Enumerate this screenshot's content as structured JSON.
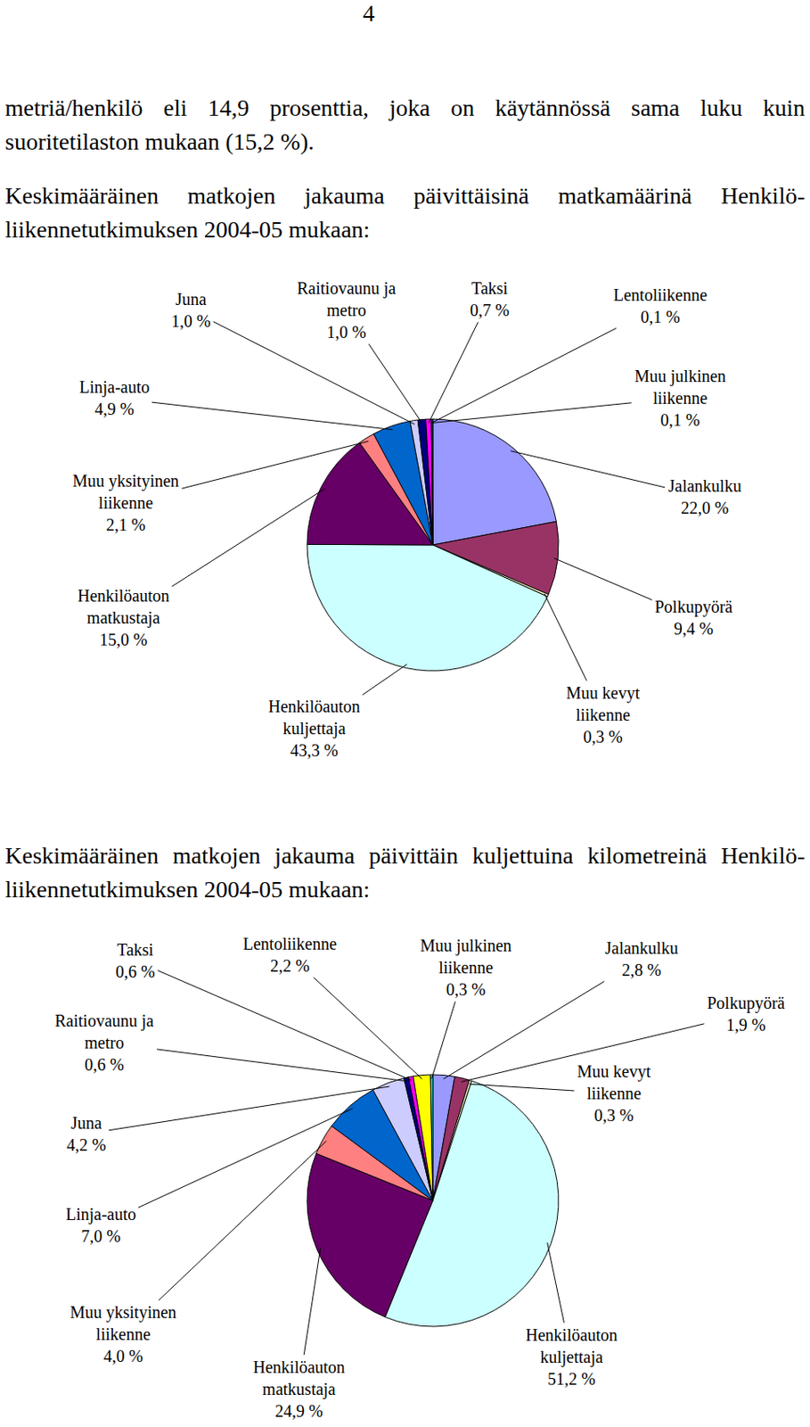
{
  "page_number": "4",
  "paragraphs": [
    "metriä/henkilö eli 14,9 prosenttia, joka on käytännössä sama luku kuin suoritetilaston mukaan (15,2 %)."
  ],
  "chart_data": [
    {
      "type": "pie",
      "title": "Keskimääräinen matkojen jakauma päivittäisinä matkamäärinä Henkilö­liikennetutkimuksen 2004-05 mukaan:",
      "categories": [
        "Jalankulku",
        "Polkupyörä",
        "Muu kevyt liikenne",
        "Henkilöauton kuljettaja",
        "Henkilöauton matkustaja",
        "Muu yksityinen liikenne",
        "Linja-auto",
        "Juna",
        "Raitiovaunu ja metro",
        "Taksi",
        "Lentoliikenne",
        "Muu julkinen liikenne"
      ],
      "values": [
        22.0,
        9.4,
        0.3,
        43.3,
        15.0,
        2.1,
        4.9,
        1.0,
        1.0,
        0.7,
        0.1,
        0.1
      ],
      "value_labels": [
        "22,0 %",
        "9,4 %",
        "0,3 %",
        "43,3 %",
        "15,0 %",
        "2,1 %",
        "4,9 %",
        "1,0 %",
        "1,0 %",
        "0,7 %",
        "0,1 %",
        "0,1 %"
      ],
      "colors": [
        "#9999ff",
        "#993366",
        "#ffffcc",
        "#ccffff",
        "#660066",
        "#ff8080",
        "#0066cc",
        "#ccccff",
        "#000080",
        "#ff00ff",
        "#ffff00",
        "#00ffff"
      ],
      "data_labels": true
    },
    {
      "type": "pie",
      "title": "Keskimääräinen matkojen jakauma päivittäin kuljettuina kilometreinä Henkilö­liikennetutkimuksen 2004-05 mukaan:",
      "categories": [
        "Jalankulku",
        "Polkupyörä",
        "Muu kevyt liikenne",
        "Henkilöauton kuljettaja",
        "Henkilöauton matkustaja",
        "Muu yksityinen liikenne",
        "Linja-auto",
        "Juna",
        "Raitiovaunu ja metro",
        "Taksi",
        "Lentoliikenne",
        "Muu julkinen liikenne"
      ],
      "values": [
        2.8,
        1.9,
        0.3,
        51.2,
        24.9,
        4.0,
        7.0,
        4.2,
        0.6,
        0.6,
        2.2,
        0.3
      ],
      "value_labels": [
        "2,8 %",
        "1,9 %",
        "0,3 %",
        "51,2 %",
        "24,9 %",
        "4,0 %",
        "7,0 %",
        "4,2 %",
        "0,6 %",
        "0,6 %",
        "2,2 %",
        "0,3 %"
      ],
      "colors": [
        "#9999ff",
        "#993366",
        "#ffffcc",
        "#ccffff",
        "#660066",
        "#ff8080",
        "#0066cc",
        "#ccccff",
        "#000080",
        "#ff00ff",
        "#ffff00",
        "#00ffff"
      ],
      "data_labels": true
    }
  ]
}
